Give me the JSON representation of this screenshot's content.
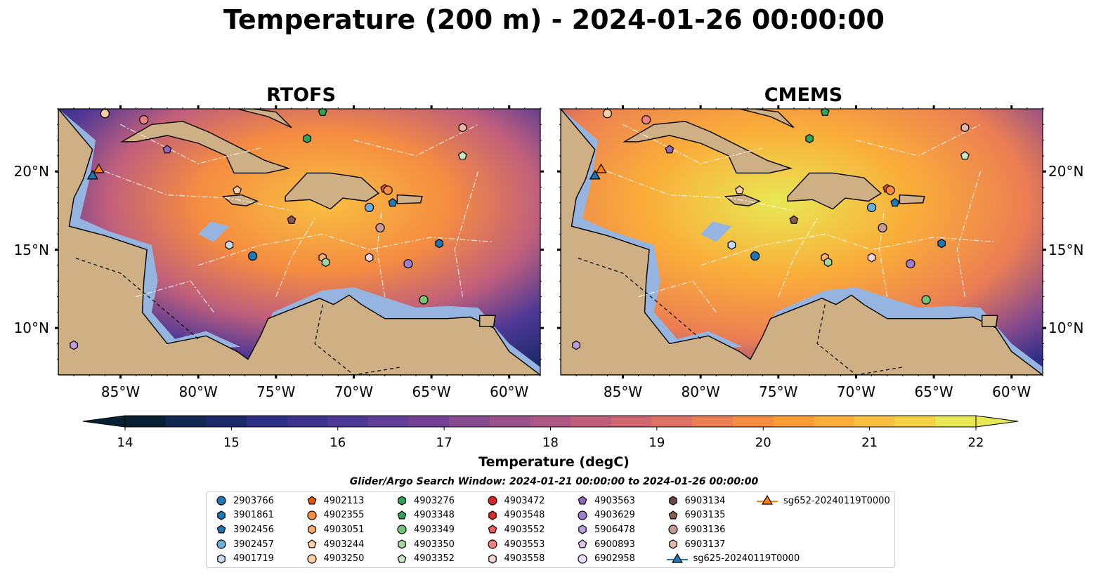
{
  "title": "Temperature (200 m) - 2024-01-26 00:00:00",
  "colors": {
    "ocean_bg": "#0a2233",
    "land": "#cfb084",
    "shelf_water": "#96b4e0",
    "contour": "#ffffff"
  },
  "panels": [
    {
      "title": "RTOFS",
      "fill": "url(#gradR)"
    },
    {
      "title": "CMEMS",
      "fill": "url(#gradC)"
    }
  ],
  "lon_ticks": [
    "85°W",
    "80°W",
    "75°W",
    "70°W",
    "65°W",
    "60°W"
  ],
  "lat_ticks": [
    "20°N",
    "15°N",
    "10°N"
  ],
  "colorbar": {
    "label": "Temperature (degC)",
    "min": 14,
    "max": 22,
    "ticks": [
      "14",
      "15",
      "16",
      "17",
      "18",
      "19",
      "20",
      "21",
      "22"
    ],
    "colors": [
      "#072033",
      "#132850",
      "#1c2a6c",
      "#2c2f86",
      "#3d338f",
      "#4e3895",
      "#613f97",
      "#733f93",
      "#864a8e",
      "#9a5089",
      "#ac5784",
      "#bf5f7c",
      "#d06874",
      "#df7266",
      "#eb7e53",
      "#f58c41",
      "#fb9b34",
      "#faad3a",
      "#f8c041",
      "#f5d243",
      "#e8e854"
    ]
  },
  "search_window": "Glider/Argo Search Window: 2024-01-21 00:00:00 to 2024-01-26 00:00:00",
  "chart_data": {
    "type": "map",
    "variable": "Temperature",
    "units": "degC",
    "depth": "200 m",
    "extent": {
      "lon": [
        -89,
        -58
      ],
      "lat": [
        7,
        24
      ]
    },
    "floats": [
      {
        "id": "2903766",
        "marker": "circle",
        "color": "#1f77b4",
        "lon": -76.5,
        "lat": 14.6
      },
      {
        "id": "3901861",
        "marker": "hexagon",
        "color": "#1f77b4",
        "lon": -64.5,
        "lat": 15.4
      },
      {
        "id": "3902456",
        "marker": "pentagon",
        "color": "#1f77b4",
        "lon": -67.5,
        "lat": 18.0
      },
      {
        "id": "3902457",
        "marker": "circle",
        "color": "#6baed6",
        "lon": -69.0,
        "lat": 17.7
      },
      {
        "id": "4901719",
        "marker": "hexagon",
        "color": "#c6dbef",
        "lon": -78.0,
        "lat": 15.3
      },
      {
        "id": "4902113",
        "marker": "pentagon",
        "color": "#e6550d",
        "lon": -68.0,
        "lat": 18.9
      },
      {
        "id": "4902355",
        "marker": "circle",
        "color": "#fd8d3c",
        "lon": -67.8,
        "lat": 18.8
      },
      {
        "id": "4903051",
        "marker": "hexagon",
        "color": "#fdae6b",
        "lon": -72.0,
        "lat": 14.5
      },
      {
        "id": "4903244",
        "marker": "pentagon",
        "color": "#fdd0a2",
        "lon": -77.5,
        "lat": 18.8
      },
      {
        "id": "4903250",
        "marker": "circle",
        "color": "#fdd0a2",
        "lon": -86.0,
        "lat": 23.7
      },
      {
        "id": "4903276",
        "marker": "hexagon",
        "color": "#31a354",
        "lon": -73.0,
        "lat": 22.1
      },
      {
        "id": "4903348",
        "marker": "pentagon",
        "color": "#31a354",
        "lon": -72.0,
        "lat": 23.8
      },
      {
        "id": "4903349",
        "marker": "circle",
        "color": "#74c476",
        "lon": -65.5,
        "lat": 11.8
      },
      {
        "id": "4903350",
        "marker": "hexagon",
        "color": "#a1d99b",
        "lon": -71.8,
        "lat": 14.2
      },
      {
        "id": "4903352",
        "marker": "pentagon",
        "color": "#c7e9c0",
        "lon": -63.0,
        "lat": 21.0
      },
      {
        "id": "4903472",
        "marker": "circle",
        "color": "#d62728",
        "lon": null,
        "lat": null
      },
      {
        "id": "4903548",
        "marker": "hexagon",
        "color": "#de2d26",
        "lon": null,
        "lat": null
      },
      {
        "id": "4903552",
        "marker": "pentagon",
        "color": "#ef6060",
        "lon": null,
        "lat": null
      },
      {
        "id": "4903553",
        "marker": "circle",
        "color": "#f08080",
        "lon": -83.5,
        "lat": 23.3
      },
      {
        "id": "4903558",
        "marker": "hexagon",
        "color": "#fcd5d5",
        "lon": -69.0,
        "lat": 14.5
      },
      {
        "id": "4903563",
        "marker": "pentagon",
        "color": "#9467bd",
        "lon": -82.0,
        "lat": 21.4
      },
      {
        "id": "4903629",
        "marker": "circle",
        "color": "#9e7fcf",
        "lon": -66.5,
        "lat": 14.1
      },
      {
        "id": "5906478",
        "marker": "hexagon",
        "color": "#bc9fe0",
        "lon": -88.0,
        "lat": 8.9
      },
      {
        "id": "6900893",
        "marker": "pentagon",
        "color": "#dcc8f5",
        "lon": null,
        "lat": null
      },
      {
        "id": "6902958",
        "marker": "circle",
        "color": "#ecdcfa",
        "lon": null,
        "lat": null
      },
      {
        "id": "6903134",
        "marker": "hexagon",
        "color": "#6b4a3e",
        "lon": null,
        "lat": null
      },
      {
        "id": "6903135",
        "marker": "pentagon",
        "color": "#8c5a48",
        "lon": -74.0,
        "lat": 16.9
      },
      {
        "id": "6903136",
        "marker": "circle",
        "color": "#c49c94",
        "lon": -68.3,
        "lat": 16.4
      },
      {
        "id": "6903137",
        "marker": "hexagon",
        "color": "#e5b7a8",
        "lon": -63.0,
        "lat": 22.8
      },
      {
        "id": "sg625-20240119T0000",
        "marker": "triangle",
        "color": "#1f77b4",
        "lon": -86.8,
        "lat": 19.7
      },
      {
        "id": "sg652-20240119T0000",
        "marker": "triangle",
        "color": "#ff7f0e",
        "lon": -86.4,
        "lat": 20.1
      }
    ]
  }
}
